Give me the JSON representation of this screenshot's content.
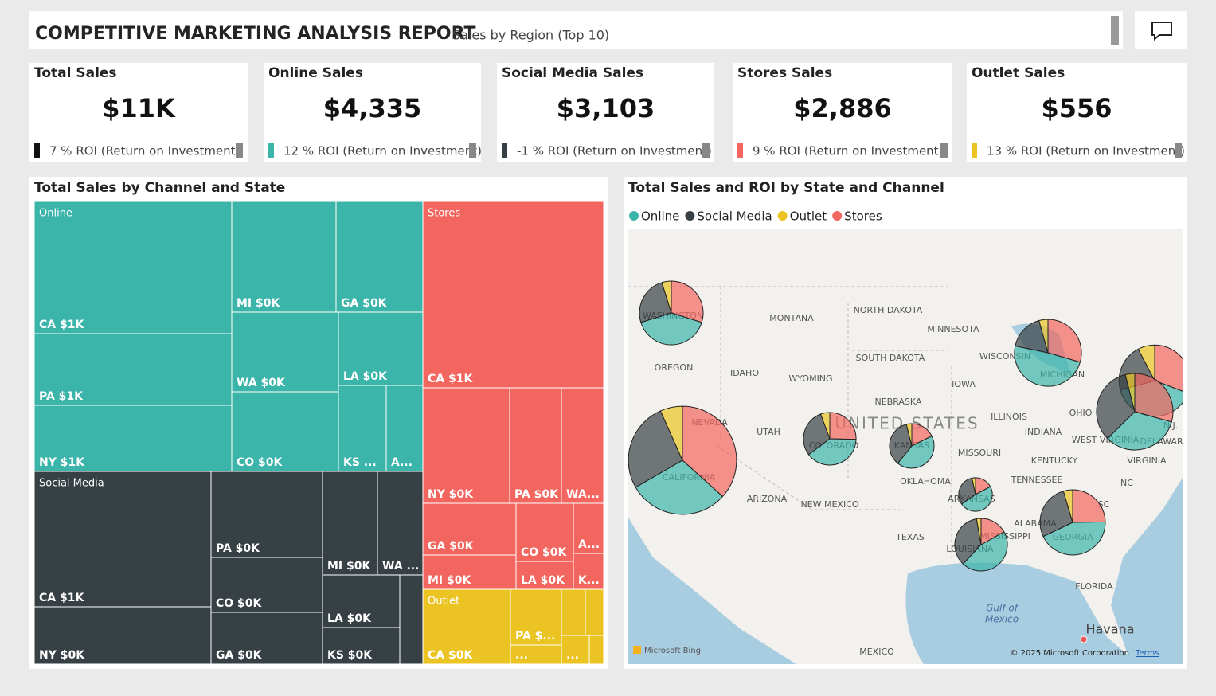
{
  "header": {
    "title": "COMPETITIVE MARKETING ANALYSIS REPORT",
    "subtitle": "Sales by Region (Top 10)"
  },
  "kpis": [
    {
      "title": "Total Sales",
      "value": "$11K",
      "roi": "7 % ROI (Return on Investment)",
      "color": "#111111"
    },
    {
      "title": "Online Sales",
      "value": "$4,335",
      "roi": "12 % ROI (Return on Investment)",
      "color": "#3bb5aa"
    },
    {
      "title": "Social Media Sales",
      "value": "$3,103",
      "roi": "-1 % ROI (Return on Investment)",
      "color": "#374044"
    },
    {
      "title": "Stores Sales",
      "value": "$2,886",
      "roi": "9 % ROI (Return on Investment)",
      "color": "#f2665f"
    },
    {
      "title": "Outlet Sales",
      "value": "$556",
      "roi": "13 % ROI (Return on Investment)",
      "color": "#ebc424"
    }
  ],
  "treemap": {
    "title": "Total Sales by Channel and State",
    "groups": [
      {
        "name": "Online",
        "color": "#3bb5aa",
        "tiles": [
          "CA $1K",
          "PA $1K",
          "NY $1K",
          "MI $0K",
          "GA $0K",
          "WA $0K",
          "CO $0K",
          "LA $0K",
          "KS ...",
          "A..."
        ]
      },
      {
        "name": "Social Media",
        "color": "#374044",
        "tiles": [
          "CA $1K",
          "NY $0K",
          "PA $0K",
          "CO $0K",
          "GA $0K",
          "MI $0K",
          "WA ...",
          "LA $0K",
          "KS $0K",
          null
        ]
      },
      {
        "name": "Stores",
        "color": "#f2665f",
        "tiles": [
          "CA $1K",
          "NY $0K",
          "PA $0K",
          "WA...",
          "GA $0K",
          "MI $0K",
          "CO $0K",
          "LA $0K",
          "A...",
          "K..."
        ]
      },
      {
        "name": "Outlet",
        "color": "#ebc424",
        "tiles": [
          "CA $0K",
          "PA $...",
          "...",
          null,
          null,
          "...",
          null
        ]
      }
    ]
  },
  "map": {
    "title": "Total Sales and ROI by State and Channel",
    "legend": [
      {
        "name": "Online",
        "color": "#3bb5aa"
      },
      {
        "name": "Social Media",
        "color": "#374044"
      },
      {
        "name": "Outlet",
        "color": "#ebc424"
      },
      {
        "name": "Stores",
        "color": "#f2665f"
      }
    ],
    "pies": [
      {
        "values": [
          900,
          800,
          200,
          1100
        ]
      },
      {
        "values": [
          420,
          260,
          50,
          310
        ]
      },
      {
        "values": [
          560,
          200,
          50,
          340
        ]
      },
      {
        "values": [
          520,
          280,
          100,
          400
        ]
      },
      {
        "values": [
          500,
          500,
          60,
          440
        ]
      },
      {
        "values": [
          280,
          210,
          40,
          180
        ]
      },
      {
        "values": [
          220,
          180,
          20,
          90
        ]
      },
      {
        "values": [
          140,
          90,
          10,
          50
        ]
      },
      {
        "values": [
          320,
          250,
          20,
          120
        ]
      },
      {
        "values": [
          470,
          300,
          50,
          270
        ]
      }
    ],
    "labels": [
      "MONTANA",
      "NORTH DAKOTA",
      "MINNESOTA",
      "OREGON",
      "IDAHO",
      "WYOMING",
      "SOUTH DAKOTA",
      "WISCONSIN",
      "IOWA",
      "NEBRASKA",
      "ILLINOIS",
      "OHIO",
      "NEVADA",
      "UTAH",
      "COLORADO",
      "KANSAS",
      "INDIANA",
      "WEST VIRGINIA",
      "MISSOURI",
      "KENTUCKY",
      "VIRGINIA",
      "CALIFORNIA",
      "OKLAHOMA",
      "TENNESSEE",
      "NC",
      "ARIZONA",
      "NEW MEXICO",
      "ARKANSAS",
      "SC",
      "TEXAS",
      "MISSISSIPPI",
      "GEORGIA",
      "ALABAMA",
      "LOUISIANA",
      "FLORIDA",
      "MICHIGAN",
      "WASHINGTON",
      "DELAWARE",
      "N.J.",
      "MEXICO"
    ],
    "country": "UNITED STATES",
    "gulf": [
      "Gulf of",
      "Mexico"
    ],
    "city": "Havana",
    "attribution": {
      "bing": "Microsoft Bing",
      "copyright": "© 2025 Microsoft Corporation",
      "terms": "Terms"
    }
  }
}
